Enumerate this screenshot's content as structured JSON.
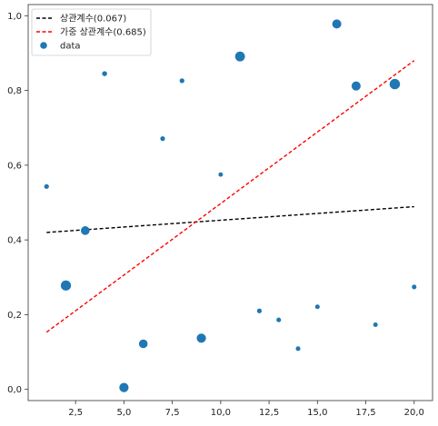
{
  "chart_data": {
    "type": "scatter",
    "title": "",
    "xlabel": "",
    "ylabel": "",
    "xlim": [
      0.05,
      20.95
    ],
    "ylim": [
      -0.03,
      1.03
    ],
    "xticks": [
      2.5,
      5.0,
      7.5,
      10.0,
      12.5,
      15.0,
      17.5,
      20.0
    ],
    "xtick_labels": [
      "2,5",
      "5,0",
      "7,5",
      "10,0",
      "12,5",
      "15,0",
      "17,5",
      "20,0"
    ],
    "yticks": [
      0.0,
      0.2,
      0.4,
      0.6,
      0.8,
      1.0
    ],
    "ytick_labels": [
      "0,0",
      "0,2",
      "0,4",
      "0,6",
      "0,8",
      "1,0"
    ],
    "grid": false,
    "legend": {
      "placement": "top-left"
    },
    "colors": {
      "points": "#1f77b4",
      "corr_line": "#000000",
      "weighted_line": "#ff0000"
    },
    "series": [
      {
        "name": "data",
        "kind": "scatter",
        "points": [
          {
            "x": 1,
            "y": 0.543,
            "weight": 0.08
          },
          {
            "x": 2,
            "y": 0.278,
            "weight": 0.96
          },
          {
            "x": 3,
            "y": 0.425,
            "weight": 0.62
          },
          {
            "x": 4,
            "y": 0.845,
            "weight": 0.1
          },
          {
            "x": 5,
            "y": 0.005,
            "weight": 0.75
          },
          {
            "x": 6,
            "y": 0.122,
            "weight": 0.62
          },
          {
            "x": 7,
            "y": 0.671,
            "weight": 0.08
          },
          {
            "x": 8,
            "y": 0.826,
            "weight": 0.08
          },
          {
            "x": 9,
            "y": 0.137,
            "weight": 0.75
          },
          {
            "x": 10,
            "y": 0.575,
            "weight": 0.06
          },
          {
            "x": 11,
            "y": 0.891,
            "weight": 0.88
          },
          {
            "x": 12,
            "y": 0.21,
            "weight": 0.08
          },
          {
            "x": 13,
            "y": 0.186,
            "weight": 0.07
          },
          {
            "x": 14,
            "y": 0.109,
            "weight": 0.07
          },
          {
            "x": 15,
            "y": 0.221,
            "weight": 0.07
          },
          {
            "x": 16,
            "y": 0.978,
            "weight": 0.7
          },
          {
            "x": 17,
            "y": 0.812,
            "weight": 0.7
          },
          {
            "x": 18,
            "y": 0.173,
            "weight": 0.07
          },
          {
            "x": 19,
            "y": 0.817,
            "weight": 1.0
          },
          {
            "x": 20,
            "y": 0.274,
            "weight": 0.07
          }
        ]
      },
      {
        "name": "상관계수(0.067)",
        "kind": "line",
        "style": "dashed",
        "x": [
          1,
          20
        ],
        "y": [
          0.42,
          0.489
        ]
      },
      {
        "name": "가중 상관계수(0.685)",
        "kind": "line",
        "style": "dashed",
        "x": [
          1,
          20
        ],
        "y": [
          0.153,
          0.88
        ]
      }
    ]
  }
}
